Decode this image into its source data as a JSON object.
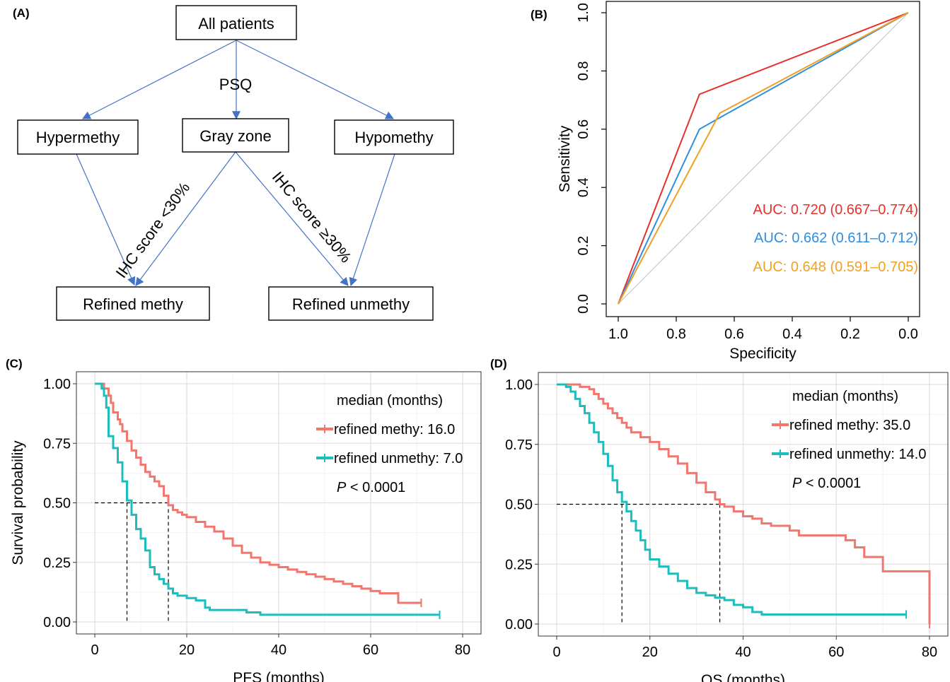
{
  "panels": {
    "a": "(A)",
    "b": "(B)",
    "c": "(C)",
    "d": "(D)"
  },
  "flowchart": {
    "root": "All patients",
    "method_label": "PSQ",
    "hyper": "Hypermethy",
    "gray": "Gray zone",
    "hypo": "Hypomethy",
    "ihc_low": "IHC score <30%",
    "ihc_high": "IHC score ≥30%",
    "refined_methy": "Refined methy",
    "refined_unmethy": "Refined unmethy"
  },
  "chart_data": [
    {
      "type": "line",
      "panel": "B",
      "xlabel": "Specificity",
      "ylabel": "Sensitivity",
      "xlim": [
        1.0,
        0.0
      ],
      "ylim": [
        0.0,
        1.0
      ],
      "x_reversed": true,
      "xticks": [
        1.0,
        0.8,
        0.6,
        0.4,
        0.2,
        0.0
      ],
      "xtick_labels": [
        "1.0",
        "0.8",
        "0.6",
        "0.4",
        "0.2",
        "0.0"
      ],
      "yticks": [
        0.0,
        0.2,
        0.4,
        0.6,
        0.8,
        1.0
      ],
      "ytick_labels": [
        "0.0",
        "0.2",
        "0.4",
        "0.6",
        "0.8",
        "1.0"
      ],
      "diagonal": true,
      "series": [
        {
          "color": "#E8302A",
          "specificity": [
            1.0,
            0.72,
            0.0
          ],
          "sensitivity": [
            0.0,
            0.72,
            1.0
          ],
          "label": "AUC: 0.720 (0.667–0.774)"
        },
        {
          "color": "#2E8FE0",
          "specificity": [
            1.0,
            0.72,
            0.64,
            0.0
          ],
          "sensitivity": [
            0.0,
            0.6,
            0.645,
            1.0
          ],
          "label": "AUC: 0.662 (0.611–0.712)"
        },
        {
          "color": "#F0A020",
          "specificity": [
            1.0,
            0.65,
            0.0
          ],
          "sensitivity": [
            0.0,
            0.655,
            1.0
          ],
          "label": "AUC: 0.648 (0.591–0.705)"
        }
      ]
    },
    {
      "type": "line",
      "panel": "C",
      "step": true,
      "xlabel": "PFS (months)",
      "ylabel": "Survival probability",
      "xlim": [
        0,
        80
      ],
      "ylim": [
        0,
        1
      ],
      "xticks": [
        0,
        20,
        40,
        60,
        80
      ],
      "xtick_labels": [
        "0",
        "20",
        "40",
        "60",
        "80"
      ],
      "yticks": [
        0,
        0.25,
        0.5,
        0.75,
        1.0
      ],
      "ytick_labels": [
        "0.00",
        "0.25",
        "0.50",
        "0.75",
        "1.00"
      ],
      "legend_title": "median (months)",
      "p_label": "P",
      "p_value": "< 0.0001",
      "median_line_y": 0.5,
      "series": [
        {
          "name": "refined methy: 16.0",
          "color": "#F2766E",
          "median": 16.0,
          "x": [
            0,
            2,
            3,
            3.5,
            4,
            5,
            5.5,
            6,
            7,
            8,
            9,
            10,
            11,
            12,
            13,
            14,
            15,
            16,
            17,
            18,
            19,
            20,
            22,
            24,
            26,
            28,
            30,
            32,
            34,
            36,
            38,
            40,
            42,
            44,
            46,
            48,
            50,
            52,
            54,
            56,
            58,
            60,
            62,
            64,
            66,
            68,
            71
          ],
          "y": [
            1.0,
            0.98,
            0.95,
            0.92,
            0.88,
            0.85,
            0.83,
            0.8,
            0.76,
            0.72,
            0.69,
            0.66,
            0.63,
            0.61,
            0.59,
            0.57,
            0.53,
            0.49,
            0.47,
            0.46,
            0.45,
            0.44,
            0.42,
            0.4,
            0.38,
            0.35,
            0.32,
            0.29,
            0.27,
            0.25,
            0.24,
            0.23,
            0.22,
            0.21,
            0.2,
            0.19,
            0.18,
            0.17,
            0.16,
            0.15,
            0.14,
            0.13,
            0.12,
            0.12,
            0.08,
            0.08,
            0.08
          ]
        },
        {
          "name": "refined unmethy: 7.0",
          "color": "#1CBDBD",
          "median": 7.0,
          "x": [
            0,
            1.5,
            2,
            2.5,
            3,
            4,
            5,
            6,
            7,
            8,
            9,
            10,
            11,
            12,
            13,
            14,
            15,
            16,
            17,
            18,
            20,
            22,
            24,
            25,
            26,
            30,
            33,
            36,
            40,
            50,
            60,
            70,
            75
          ],
          "y": [
            1.0,
            0.98,
            0.95,
            0.9,
            0.78,
            0.73,
            0.67,
            0.59,
            0.51,
            0.45,
            0.39,
            0.35,
            0.3,
            0.23,
            0.2,
            0.18,
            0.16,
            0.14,
            0.12,
            0.11,
            0.1,
            0.09,
            0.06,
            0.05,
            0.05,
            0.05,
            0.04,
            0.03,
            0.03,
            0.03,
            0.03,
            0.03,
            0.03
          ]
        }
      ]
    },
    {
      "type": "line",
      "panel": "D",
      "step": true,
      "xlabel": "OS (months)",
      "ylabel": "",
      "xlim": [
        0,
        80
      ],
      "ylim": [
        0,
        1
      ],
      "xticks": [
        0,
        20,
        40,
        60,
        80
      ],
      "xtick_labels": [
        "0",
        "20",
        "40",
        "60",
        "80"
      ],
      "yticks": [
        0,
        0.25,
        0.5,
        0.75,
        1.0
      ],
      "ytick_labels": [
        "0.00",
        "0.25",
        "0.50",
        "0.75",
        "1.00"
      ],
      "legend_title": "median (months)",
      "p_label": "P",
      "p_value": "< 0.0001",
      "median_line_y": 0.5,
      "series": [
        {
          "name": "refined methy: 35.0",
          "color": "#F2766E",
          "median": 35.0,
          "x": [
            0,
            5,
            7,
            8,
            9,
            10,
            11,
            12,
            13,
            14,
            15,
            16,
            18,
            20,
            22,
            24,
            26,
            28,
            30,
            32,
            34,
            35,
            36,
            38,
            40,
            42,
            44,
            46,
            48,
            50,
            52,
            55,
            58,
            60,
            62,
            64,
            66,
            68,
            70,
            73,
            76,
            79,
            80
          ],
          "y": [
            1.0,
            0.99,
            0.98,
            0.96,
            0.94,
            0.92,
            0.9,
            0.88,
            0.86,
            0.84,
            0.82,
            0.8,
            0.78,
            0.76,
            0.73,
            0.7,
            0.67,
            0.63,
            0.59,
            0.55,
            0.52,
            0.5,
            0.49,
            0.47,
            0.45,
            0.44,
            0.42,
            0.41,
            0.41,
            0.39,
            0.37,
            0.37,
            0.37,
            0.37,
            0.35,
            0.32,
            0.28,
            0.28,
            0.22,
            0.22,
            0.22,
            0.22,
            0.0
          ]
        },
        {
          "name": "refined unmethy: 14.0",
          "color": "#1CBDBD",
          "median": 14.0,
          "x": [
            0,
            2,
            3,
            4,
            5,
            6,
            7,
            8,
            9,
            10,
            11,
            12,
            13,
            14,
            15,
            16,
            17,
            18,
            19,
            20,
            22,
            24,
            26,
            28,
            30,
            32,
            34,
            36,
            38,
            40,
            42,
            44,
            50,
            60,
            70,
            75
          ],
          "y": [
            1.0,
            0.99,
            0.97,
            0.94,
            0.91,
            0.88,
            0.84,
            0.8,
            0.76,
            0.71,
            0.66,
            0.6,
            0.55,
            0.51,
            0.47,
            0.43,
            0.39,
            0.35,
            0.31,
            0.27,
            0.24,
            0.21,
            0.18,
            0.15,
            0.13,
            0.12,
            0.11,
            0.1,
            0.08,
            0.07,
            0.05,
            0.04,
            0.04,
            0.04,
            0.04,
            0.04
          ]
        }
      ]
    }
  ]
}
